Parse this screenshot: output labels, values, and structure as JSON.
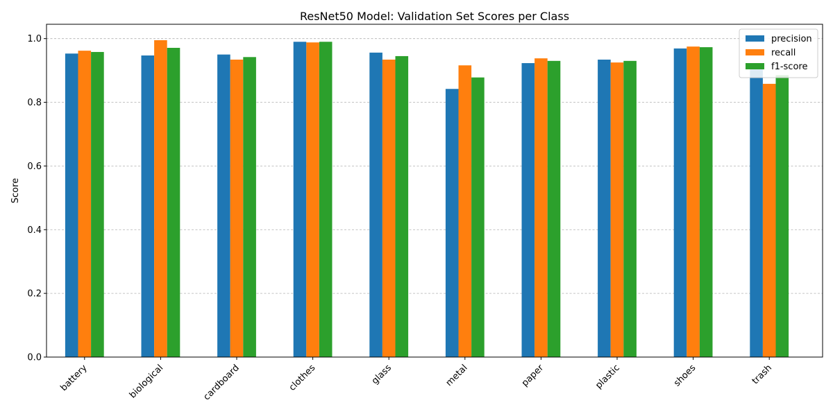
{
  "chart_data": {
    "type": "bar",
    "title": "ResNet50 Model: Validation Set Scores per Class",
    "xlabel": "",
    "ylabel": "Score",
    "ylim": [
      0,
      1.045
    ],
    "yticks": [
      "0.0",
      "0.2",
      "0.4",
      "0.6",
      "0.8",
      "1.0"
    ],
    "grid": "y, dashed",
    "legend_position": "top-right",
    "categories": [
      "battery",
      "biological",
      "cardboard",
      "clothes",
      "glass",
      "metal",
      "paper",
      "plastic",
      "shoes",
      "trash"
    ],
    "series": [
      {
        "name": "precision",
        "color": "#1f77b4",
        "values": [
          0.953,
          0.947,
          0.95,
          0.99,
          0.956,
          0.842,
          0.923,
          0.934,
          0.969,
          0.91
        ]
      },
      {
        "name": "recall",
        "color": "#ff7f0e",
        "values": [
          0.962,
          0.995,
          0.934,
          0.988,
          0.934,
          0.916,
          0.938,
          0.925,
          0.975,
          0.858
        ]
      },
      {
        "name": "f1-score",
        "color": "#2ca02c",
        "values": [
          0.958,
          0.971,
          0.942,
          0.99,
          0.945,
          0.878,
          0.93,
          0.93,
          0.973,
          0.885
        ]
      }
    ]
  }
}
